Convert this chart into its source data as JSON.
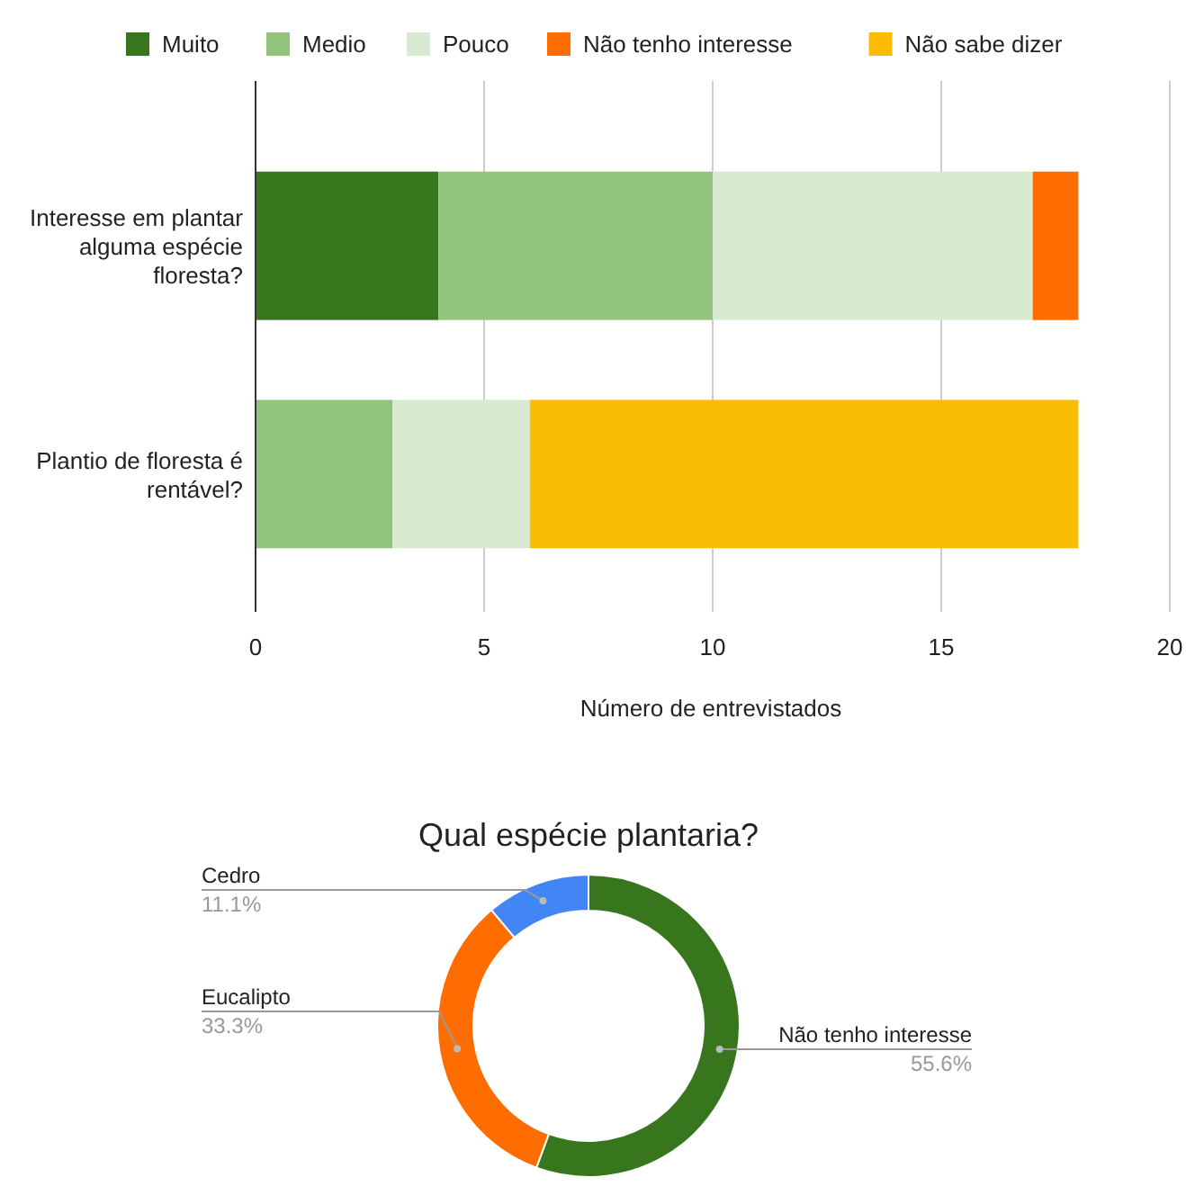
{
  "chart_data": [
    {
      "type": "bar",
      "orientation": "horizontal",
      "stacked": true,
      "categories": [
        "Interesse em plantar alguma espécie floresta?",
        "Plantio de floresta é rentável?"
      ],
      "series": [
        {
          "name": "Muito",
          "color": "#38761d",
          "values": [
            4,
            0
          ]
        },
        {
          "name": "Medio",
          "color": "#93c47d",
          "values": [
            6,
            3
          ]
        },
        {
          "name": "Pouco",
          "color": "#d9ead3",
          "values": [
            7,
            3
          ]
        },
        {
          "name": "Não tenho interesse",
          "color": "#ff6d01",
          "values": [
            1,
            0
          ]
        },
        {
          "name": "Não sabe dizer",
          "color": "#fbbc04",
          "values": [
            0,
            12
          ]
        }
      ],
      "xlim": [
        0,
        20
      ],
      "xticks": [
        0,
        5,
        10,
        15,
        20
      ],
      "xlabel": "Número de entrevistados",
      "grid": "x",
      "legend": "top"
    },
    {
      "type": "donut",
      "title": "Qual espécie plantaria?",
      "categories": [
        "Não tenho interesse",
        "Eucalipto",
        "Cedro"
      ],
      "values": [
        55.6,
        33.3,
        11.1
      ],
      "colors": [
        "#38761d",
        "#ff6d01",
        "#4285f4"
      ],
      "value_labels": [
        "55.6%",
        "33.3%",
        "11.1%"
      ]
    }
  ]
}
